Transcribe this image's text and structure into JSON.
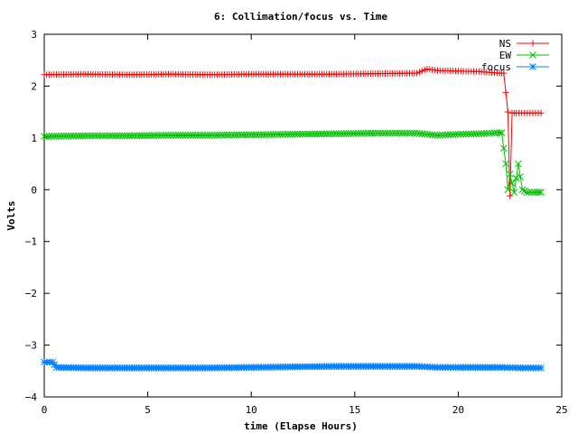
{
  "chart_data": {
    "type": "line",
    "title": "6: Collimation/focus vs. Time",
    "xlabel": "time (Elapse Hours)",
    "ylabel": "Volts",
    "xlim": [
      0,
      25
    ],
    "ylim": [
      -4,
      3
    ],
    "x_ticks": [
      "0",
      "5",
      "10",
      "15",
      "20",
      "25"
    ],
    "y_ticks": [
      "3",
      "2",
      "1",
      "0",
      "−1",
      "−2",
      "−3",
      "−4"
    ],
    "grid": false,
    "legend_position": "top-right",
    "series": [
      {
        "name": "NS",
        "color": "#ff0000",
        "marker": "plus",
        "points": [
          [
            0,
            2.22
          ],
          [
            2,
            2.23
          ],
          [
            4,
            2.22
          ],
          [
            6,
            2.23
          ],
          [
            8,
            2.22
          ],
          [
            10,
            2.23
          ],
          [
            12,
            2.23
          ],
          [
            14,
            2.23
          ],
          [
            16,
            2.24
          ],
          [
            18,
            2.25
          ],
          [
            18.5,
            2.33
          ],
          [
            19,
            2.3
          ],
          [
            20,
            2.29
          ],
          [
            21,
            2.28
          ],
          [
            22,
            2.25
          ],
          [
            22.2,
            2.25
          ],
          [
            22.4,
            1.5
          ],
          [
            22.5,
            -0.12
          ],
          [
            22.6,
            1.48
          ],
          [
            22.8,
            1.48
          ],
          [
            23.2,
            1.48
          ],
          [
            23.6,
            1.48
          ],
          [
            24,
            1.48
          ]
        ]
      },
      {
        "name": "EW",
        "color": "#00c000",
        "marker": "cross",
        "points": [
          [
            0,
            1.03
          ],
          [
            2,
            1.04
          ],
          [
            4,
            1.04
          ],
          [
            6,
            1.05
          ],
          [
            8,
            1.05
          ],
          [
            10,
            1.06
          ],
          [
            12,
            1.07
          ],
          [
            14,
            1.08
          ],
          [
            16,
            1.09
          ],
          [
            18,
            1.09
          ],
          [
            18.5,
            1.07
          ],
          [
            19,
            1.05
          ],
          [
            20,
            1.07
          ],
          [
            21,
            1.08
          ],
          [
            22,
            1.1
          ],
          [
            22.1,
            1.1
          ],
          [
            22.3,
            0.5
          ],
          [
            22.4,
            0.0
          ],
          [
            22.5,
            0.3
          ],
          [
            22.7,
            -0.05
          ],
          [
            22.9,
            0.5
          ],
          [
            23.1,
            0.0
          ],
          [
            23.3,
            -0.05
          ],
          [
            23.8,
            -0.05
          ],
          [
            24,
            -0.05
          ]
        ]
      },
      {
        "name": "focus",
        "color": "#0080ff",
        "marker": "star",
        "points": [
          [
            0,
            -3.33
          ],
          [
            0.4,
            -3.33
          ],
          [
            0.6,
            -3.43
          ],
          [
            2,
            -3.44
          ],
          [
            4,
            -3.44
          ],
          [
            6,
            -3.44
          ],
          [
            8,
            -3.44
          ],
          [
            10,
            -3.43
          ],
          [
            12,
            -3.42
          ],
          [
            14,
            -3.41
          ],
          [
            16,
            -3.41
          ],
          [
            18,
            -3.41
          ],
          [
            18.5,
            -3.42
          ],
          [
            19,
            -3.43
          ],
          [
            20,
            -3.43
          ],
          [
            22,
            -3.43
          ],
          [
            23,
            -3.44
          ],
          [
            24,
            -3.44
          ]
        ]
      }
    ]
  }
}
